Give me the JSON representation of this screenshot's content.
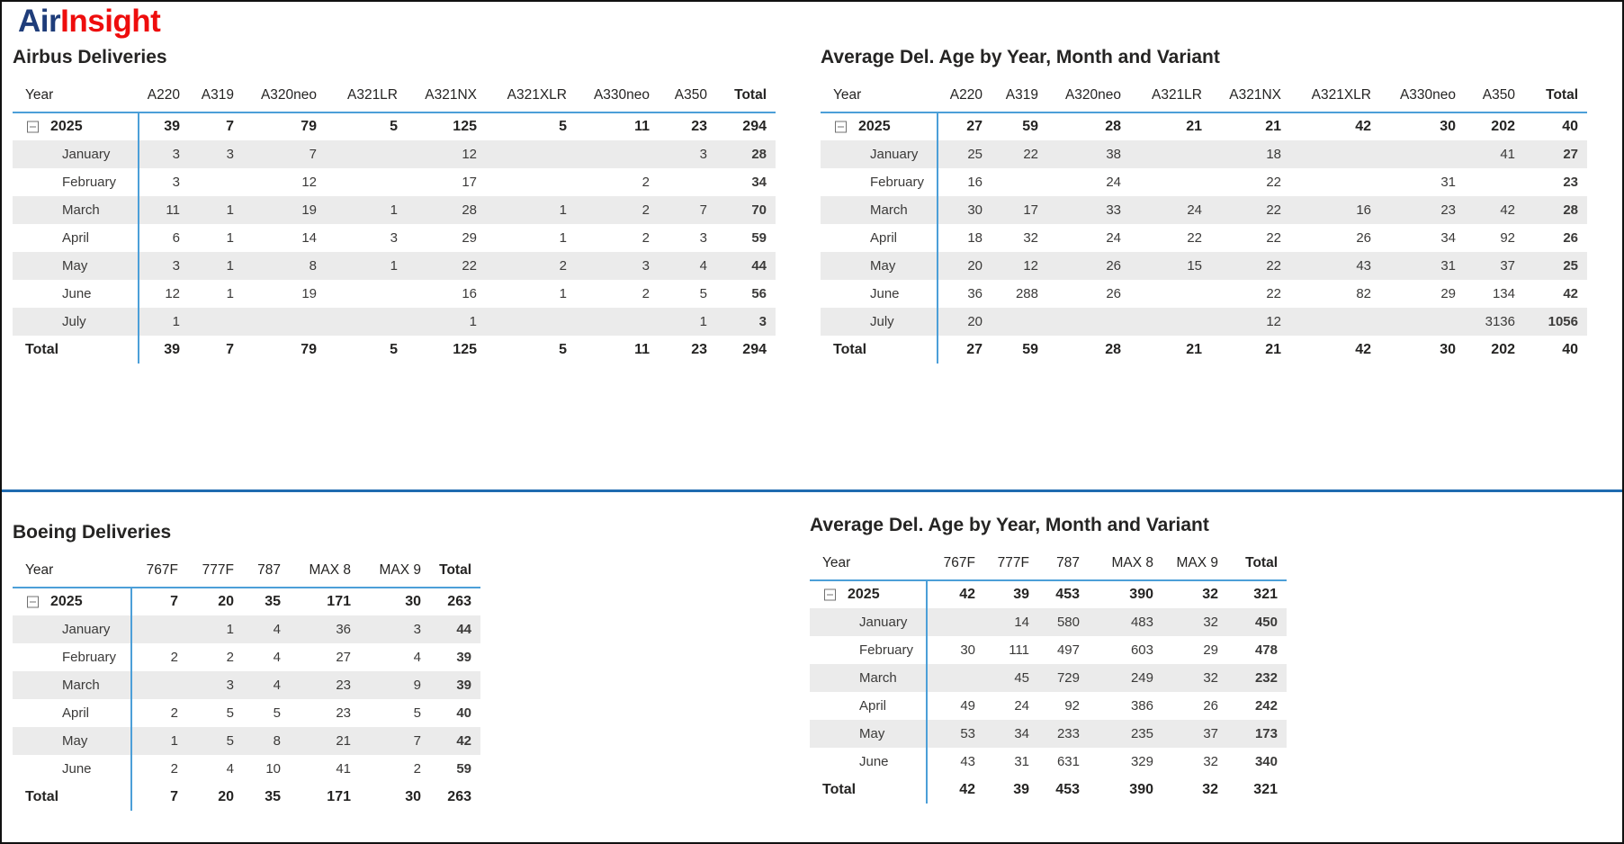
{
  "logo": {
    "air": "Air",
    "insight": "Insight"
  },
  "colors": {
    "logo_blue": "#1f3d7a",
    "logo_red": "#ee0d0d",
    "line_blue": "#4c9fd8",
    "divider_blue": "#1f6bb0",
    "row_band": "#ebebeb"
  },
  "chart_data": [
    {
      "type": "table",
      "title": "Airbus Deliveries",
      "row_header": "Year",
      "columns": [
        "A220",
        "A319",
        "A320neo",
        "A321LR",
        "A321NX",
        "A321XLR",
        "A330neo",
        "A350",
        "Total"
      ],
      "rows": [
        {
          "label": "2025",
          "level": "year",
          "expanded": true,
          "values": [
            "39",
            "7",
            "79",
            "5",
            "125",
            "5",
            "11",
            "23",
            "294"
          ]
        },
        {
          "label": "January",
          "level": "month",
          "values": [
            "3",
            "3",
            "7",
            "",
            "12",
            "",
            "",
            "3",
            "28"
          ]
        },
        {
          "label": "February",
          "level": "month",
          "values": [
            "3",
            "",
            "12",
            "",
            "17",
            "",
            "2",
            "",
            "34"
          ]
        },
        {
          "label": "March",
          "level": "month",
          "values": [
            "11",
            "1",
            "19",
            "1",
            "28",
            "1",
            "2",
            "7",
            "70"
          ]
        },
        {
          "label": "April",
          "level": "month",
          "values": [
            "6",
            "1",
            "14",
            "3",
            "29",
            "1",
            "2",
            "3",
            "59"
          ]
        },
        {
          "label": "May",
          "level": "month",
          "values": [
            "3",
            "1",
            "8",
            "1",
            "22",
            "2",
            "3",
            "4",
            "44"
          ]
        },
        {
          "label": "June",
          "level": "month",
          "values": [
            "12",
            "1",
            "19",
            "",
            "16",
            "1",
            "2",
            "5",
            "56"
          ]
        },
        {
          "label": "July",
          "level": "month",
          "values": [
            "1",
            "",
            "",
            "",
            "1",
            "",
            "",
            "1",
            "3"
          ]
        },
        {
          "label": "Total",
          "level": "total",
          "values": [
            "39",
            "7",
            "79",
            "5",
            "125",
            "5",
            "11",
            "23",
            "294"
          ]
        }
      ]
    },
    {
      "type": "table",
      "title": "Average Del. Age by Year, Month and Variant",
      "row_header": "Year",
      "columns": [
        "A220",
        "A319",
        "A320neo",
        "A321LR",
        "A321NX",
        "A321XLR",
        "A330neo",
        "A350",
        "Total"
      ],
      "rows": [
        {
          "label": "2025",
          "level": "year",
          "expanded": true,
          "values": [
            "27",
            "59",
            "28",
            "21",
            "21",
            "42",
            "30",
            "202",
            "40"
          ]
        },
        {
          "label": "January",
          "level": "month",
          "values": [
            "25",
            "22",
            "38",
            "",
            "18",
            "",
            "",
            "41",
            "27"
          ]
        },
        {
          "label": "February",
          "level": "month",
          "values": [
            "16",
            "",
            "24",
            "",
            "22",
            "",
            "31",
            "",
            "23"
          ]
        },
        {
          "label": "March",
          "level": "month",
          "values": [
            "30",
            "17",
            "33",
            "24",
            "22",
            "16",
            "23",
            "42",
            "28"
          ]
        },
        {
          "label": "April",
          "level": "month",
          "values": [
            "18",
            "32",
            "24",
            "22",
            "22",
            "26",
            "34",
            "92",
            "26"
          ]
        },
        {
          "label": "May",
          "level": "month",
          "values": [
            "20",
            "12",
            "26",
            "15",
            "22",
            "43",
            "31",
            "37",
            "25"
          ]
        },
        {
          "label": "June",
          "level": "month",
          "values": [
            "36",
            "288",
            "26",
            "",
            "22",
            "82",
            "29",
            "134",
            "42"
          ]
        },
        {
          "label": "July",
          "level": "month",
          "values": [
            "20",
            "",
            "",
            "",
            "12",
            "",
            "",
            "3136",
            "1056"
          ]
        },
        {
          "label": "Total",
          "level": "total",
          "values": [
            "27",
            "59",
            "28",
            "21",
            "21",
            "42",
            "30",
            "202",
            "40"
          ]
        }
      ]
    },
    {
      "type": "table",
      "title": "Boeing Deliveries",
      "row_header": "Year",
      "columns": [
        "767F",
        "777F",
        "787",
        "MAX 8",
        "MAX 9",
        "Total"
      ],
      "rows": [
        {
          "label": "2025",
          "level": "year",
          "expanded": true,
          "values": [
            "7",
            "20",
            "35",
            "171",
            "30",
            "263"
          ]
        },
        {
          "label": "January",
          "level": "month",
          "values": [
            "",
            "1",
            "4",
            "36",
            "3",
            "44"
          ]
        },
        {
          "label": "February",
          "level": "month",
          "values": [
            "2",
            "2",
            "4",
            "27",
            "4",
            "39"
          ]
        },
        {
          "label": "March",
          "level": "month",
          "values": [
            "",
            "3",
            "4",
            "23",
            "9",
            "39"
          ]
        },
        {
          "label": "April",
          "level": "month",
          "values": [
            "2",
            "5",
            "5",
            "23",
            "5",
            "40"
          ]
        },
        {
          "label": "May",
          "level": "month",
          "values": [
            "1",
            "5",
            "8",
            "21",
            "7",
            "42"
          ]
        },
        {
          "label": "June",
          "level": "month",
          "values": [
            "2",
            "4",
            "10",
            "41",
            "2",
            "59"
          ]
        },
        {
          "label": "Total",
          "level": "total",
          "values": [
            "7",
            "20",
            "35",
            "171",
            "30",
            "263"
          ]
        }
      ]
    },
    {
      "type": "table",
      "title": "Average Del. Age by Year, Month and Variant",
      "row_header": "Year",
      "columns": [
        "767F",
        "777F",
        "787",
        "MAX 8",
        "MAX 9",
        "Total"
      ],
      "rows": [
        {
          "label": "2025",
          "level": "year",
          "expanded": true,
          "values": [
            "42",
            "39",
            "453",
            "390",
            "32",
            "321"
          ]
        },
        {
          "label": "January",
          "level": "month",
          "values": [
            "",
            "14",
            "580",
            "483",
            "32",
            "450"
          ]
        },
        {
          "label": "February",
          "level": "month",
          "values": [
            "30",
            "111",
            "497",
            "603",
            "29",
            "478"
          ]
        },
        {
          "label": "March",
          "level": "month",
          "values": [
            "",
            "45",
            "729",
            "249",
            "32",
            "232"
          ]
        },
        {
          "label": "April",
          "level": "month",
          "values": [
            "49",
            "24",
            "92",
            "386",
            "26",
            "242"
          ]
        },
        {
          "label": "May",
          "level": "month",
          "values": [
            "53",
            "34",
            "233",
            "235",
            "37",
            "173"
          ]
        },
        {
          "label": "June",
          "level": "month",
          "values": [
            "43",
            "31",
            "631",
            "329",
            "32",
            "340"
          ]
        },
        {
          "label": "Total",
          "level": "total",
          "values": [
            "42",
            "39",
            "453",
            "390",
            "32",
            "321"
          ]
        }
      ]
    }
  ]
}
